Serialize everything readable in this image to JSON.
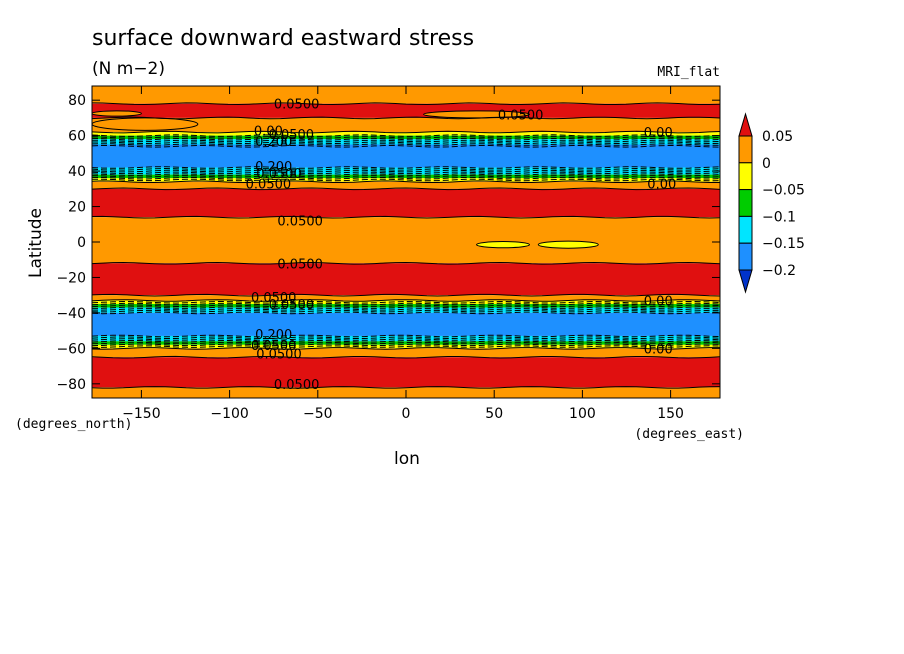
{
  "chart_data": {
    "type": "heatmap",
    "title": "surface downward eastward stress",
    "subtitle": "(N m−2)",
    "model": "MRI_flat",
    "xlabel": "lon",
    "ylabel": "Latitude",
    "xunits": "(degrees_east)",
    "yunits": "(degrees_north)",
    "xlim": [
      -178,
      178
    ],
    "ylim": [
      -88,
      88
    ],
    "xticks": [
      -150,
      -100,
      -50,
      0,
      50,
      100,
      150
    ],
    "xtick_labels": [
      "−150",
      "−100",
      "−50",
      "0",
      "50",
      "100",
      "150"
    ],
    "yticks": [
      -80,
      -60,
      -40,
      -20,
      0,
      20,
      40,
      60,
      80
    ],
    "ytick_labels": [
      "−80",
      "−60",
      "−40",
      "−20",
      "0",
      "20",
      "40",
      "60",
      "80"
    ],
    "colorbar": {
      "levels": [
        "0.05",
        "0",
        "−0.05",
        "−0.1",
        "−0.15",
        "−0.2"
      ],
      "colors": [
        "#e01010",
        "#ff9900",
        "#ffff00",
        "#00cc00",
        "#00e5ff",
        "#1e90ff",
        "#0033cc"
      ]
    },
    "bands": [
      {
        "lat": [
          78,
          88
        ],
        "color": "#ff9900"
      },
      {
        "lat": [
          70,
          78
        ],
        "color": "#e01010"
      },
      {
        "lat": [
          62,
          70
        ],
        "color": "#ff9900"
      },
      {
        "lat": [
          60,
          62
        ],
        "color": "#ffff00"
      },
      {
        "lat": [
          58,
          60
        ],
        "color": "#00cc00"
      },
      {
        "lat": [
          55,
          58
        ],
        "color": "#00e5ff"
      },
      {
        "lat": [
          42,
          55
        ],
        "color": "#1e90ff"
      },
      {
        "lat": [
          38,
          42
        ],
        "color": "#00e5ff"
      },
      {
        "lat": [
          36,
          38
        ],
        "color": "#00cc00"
      },
      {
        "lat": [
          34,
          36
        ],
        "color": "#ffff00"
      },
      {
        "lat": [
          30,
          34
        ],
        "color": "#ff9900"
      },
      {
        "lat": [
          14,
          30
        ],
        "color": "#e01010"
      },
      {
        "lat": [
          -12,
          14
        ],
        "color": "#ff9900"
      },
      {
        "lat": [
          -30,
          -12
        ],
        "color": "#e01010"
      },
      {
        "lat": [
          -33,
          -30
        ],
        "color": "#ff9900"
      },
      {
        "lat": [
          -35,
          -33
        ],
        "color": "#ffff00"
      },
      {
        "lat": [
          -37,
          -35
        ],
        "color": "#00cc00"
      },
      {
        "lat": [
          -40,
          -37
        ],
        "color": "#00e5ff"
      },
      {
        "lat": [
          -53,
          -40
        ],
        "color": "#1e90ff"
      },
      {
        "lat": [
          -56,
          -53
        ],
        "color": "#00e5ff"
      },
      {
        "lat": [
          -58,
          -56
        ],
        "color": "#00cc00"
      },
      {
        "lat": [
          -60,
          -58
        ],
        "color": "#ffff00"
      },
      {
        "lat": [
          -65,
          -60
        ],
        "color": "#ff9900"
      },
      {
        "lat": [
          -82,
          -65
        ],
        "color": "#e01010"
      },
      {
        "lat": [
          -88,
          -82
        ],
        "color": "#ff9900"
      }
    ],
    "patches": [
      {
        "lon": [
          -178,
          -118
        ],
        "lat": [
          63,
          70
        ],
        "color": "#ff9900"
      },
      {
        "lon": [
          10,
          70
        ],
        "lat": [
          70,
          74
        ],
        "color": "#ff9900"
      },
      {
        "lon": [
          -178,
          -150
        ],
        "lat": [
          71,
          74
        ],
        "color": "#ff9900"
      }
    ],
    "islands": [
      {
        "lon": 55,
        "lat": -1.5,
        "w": 30,
        "h": 3.5
      },
      {
        "lon": 92,
        "lat": -1.5,
        "w": 34,
        "h": 4
      }
    ],
    "contour_lines": [
      {
        "lat": 78,
        "dashed": false
      },
      {
        "lat": 70,
        "dashed": false
      },
      {
        "lat": 62,
        "dashed": false
      },
      {
        "lat": 60,
        "dashed": true
      },
      {
        "lat": 59,
        "dashed": true
      },
      {
        "lat": 58,
        "dashed": true
      },
      {
        "lat": 57,
        "dashed": true
      },
      {
        "lat": 56,
        "dashed": true
      },
      {
        "lat": 55,
        "dashed": true
      },
      {
        "lat": 54,
        "dashed": true
      },
      {
        "lat": 42,
        "dashed": true
      },
      {
        "lat": 41,
        "dashed": true
      },
      {
        "lat": 40,
        "dashed": true
      },
      {
        "lat": 39,
        "dashed": true
      },
      {
        "lat": 38,
        "dashed": true
      },
      {
        "lat": 37,
        "dashed": true
      },
      {
        "lat": 36,
        "dashed": true
      },
      {
        "lat": 35,
        "dashed": true
      },
      {
        "lat": 34,
        "dashed": false
      },
      {
        "lat": 30,
        "dashed": false
      },
      {
        "lat": 14,
        "dashed": false
      },
      {
        "lat": -12,
        "dashed": false
      },
      {
        "lat": -30,
        "dashed": false
      },
      {
        "lat": -33,
        "dashed": false
      },
      {
        "lat": -34,
        "dashed": true
      },
      {
        "lat": -35,
        "dashed": true
      },
      {
        "lat": -36,
        "dashed": true
      },
      {
        "lat": -37,
        "dashed": true
      },
      {
        "lat": -38,
        "dashed": true
      },
      {
        "lat": -39,
        "dashed": true
      },
      {
        "lat": -40,
        "dashed": true
      },
      {
        "lat": -53,
        "dashed": true
      },
      {
        "lat": -54,
        "dashed": true
      },
      {
        "lat": -55,
        "dashed": true
      },
      {
        "lat": -56,
        "dashed": true
      },
      {
        "lat": -57,
        "dashed": true
      },
      {
        "lat": -58,
        "dashed": true
      },
      {
        "lat": -59,
        "dashed": true
      },
      {
        "lat": -60,
        "dashed": false
      },
      {
        "lat": -65,
        "dashed": false
      },
      {
        "lat": -82,
        "dashed": false
      }
    ],
    "contour_labels": [
      {
        "text": "0.0500",
        "lon": -62,
        "lat": 78
      },
      {
        "text": "0.0500",
        "lon": 65,
        "lat": 72
      },
      {
        "text": "0.00",
        "lon": -78,
        "lat": 63
      },
      {
        "text": "0.0500",
        "lon": -65,
        "lat": 61
      },
      {
        "text": "0.00",
        "lon": 143,
        "lat": 62
      },
      {
        "text": "0.200",
        "lon": -75,
        "lat": 57
      },
      {
        "text": "0.200",
        "lon": -75,
        "lat": 43
      },
      {
        "text": "0.0500",
        "lon": -72,
        "lat": 39
      },
      {
        "text": "0.0500",
        "lon": -78,
        "lat": 33
      },
      {
        "text": "0.00",
        "lon": 145,
        "lat": 33
      },
      {
        "text": "0.0500",
        "lon": -60,
        "lat": 12
      },
      {
        "text": "0.0500",
        "lon": -60,
        "lat": -12
      },
      {
        "text": "0.0500",
        "lon": -75,
        "lat": -31
      },
      {
        "text": "0.0500",
        "lon": -65,
        "lat": -35
      },
      {
        "text": "0.00",
        "lon": 143,
        "lat": -33
      },
      {
        "text": "0.200",
        "lon": -75,
        "lat": -52
      },
      {
        "text": "0.0500",
        "lon": -75,
        "lat": -58
      },
      {
        "text": "0.0500",
        "lon": -72,
        "lat": -63
      },
      {
        "text": "0.00",
        "lon": 143,
        "lat": -60
      },
      {
        "text": "0.0500",
        "lon": -62,
        "lat": -80
      }
    ]
  }
}
